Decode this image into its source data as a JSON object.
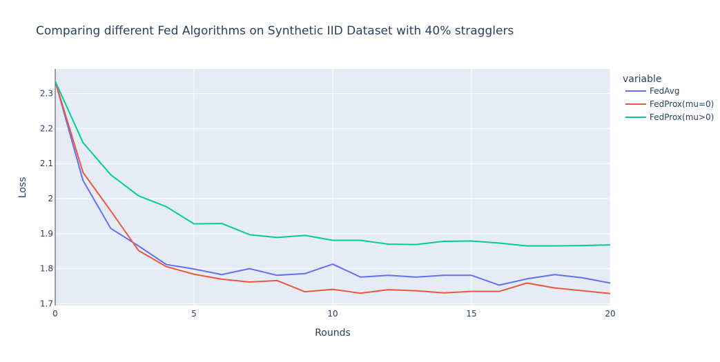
{
  "chart_data": {
    "type": "line",
    "title": "Comparing different Fed Algorithms on Synthetic IID Dataset with 40% stragglers",
    "xlabel": "Rounds",
    "ylabel": "Loss",
    "xlim": [
      0,
      20
    ],
    "ylim": [
      1.695,
      2.37
    ],
    "x_ticks": [
      0,
      5,
      10,
      15,
      20
    ],
    "y_ticks": [
      1.7,
      1.8,
      1.9,
      2,
      2.1,
      2.2,
      2.3
    ],
    "grid": true,
    "legend_title": "variable",
    "legend_position": "top-right",
    "x": [
      0,
      1,
      2,
      3,
      4,
      5,
      6,
      7,
      8,
      9,
      10,
      11,
      12,
      13,
      14,
      15,
      16,
      17,
      18,
      19,
      20
    ],
    "series": [
      {
        "name": "FedAvg",
        "color": "#636efa",
        "values": [
          2.335,
          2.052,
          1.915,
          1.865,
          1.812,
          1.799,
          1.783,
          1.8,
          1.781,
          1.786,
          1.813,
          1.776,
          1.781,
          1.776,
          1.781,
          1.781,
          1.753,
          1.771,
          1.783,
          1.774,
          1.759
        ]
      },
      {
        "name": "FedProx(mu=0)",
        "color": "#ef553b",
        "values": [
          2.335,
          2.075,
          1.965,
          1.852,
          1.806,
          1.784,
          1.77,
          1.762,
          1.766,
          1.734,
          1.741,
          1.73,
          1.74,
          1.737,
          1.731,
          1.735,
          1.735,
          1.759,
          1.745,
          1.737,
          1.729
        ]
      },
      {
        "name": "FedProx(mu>0)",
        "color": "#00cc96",
        "values": [
          2.335,
          2.16,
          2.068,
          2.008,
          1.977,
          1.928,
          1.929,
          1.897,
          1.889,
          1.895,
          1.881,
          1.881,
          1.87,
          1.869,
          1.878,
          1.879,
          1.873,
          1.865,
          1.865,
          1.866,
          1.868
        ]
      }
    ]
  }
}
